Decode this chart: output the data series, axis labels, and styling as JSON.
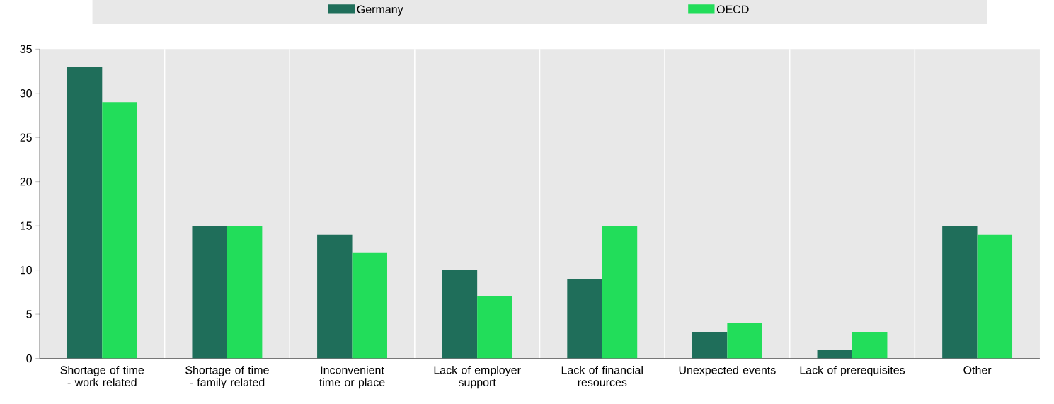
{
  "chart_data": {
    "type": "bar",
    "categories": [
      "Shortage of time - work related",
      "Shortage of time - family related",
      "Inconvenient time or place",
      "Lack of employer support",
      "Lack of financial resources",
      "Unexpected events",
      "Lack of prerequisites",
      "Other"
    ],
    "series": [
      {
        "name": "Germany",
        "color": "#1f6e5a",
        "values": [
          33,
          15,
          14,
          10,
          9,
          3,
          1,
          15
        ]
      },
      {
        "name": "OECD",
        "color": "#22dd5a",
        "values": [
          29,
          15,
          12,
          7,
          15,
          4,
          3,
          14
        ]
      }
    ],
    "ylim": [
      0,
      35
    ],
    "yticks": [
      0,
      5,
      10,
      15,
      20,
      25,
      30,
      35
    ],
    "grid": "x",
    "legend": "top"
  }
}
